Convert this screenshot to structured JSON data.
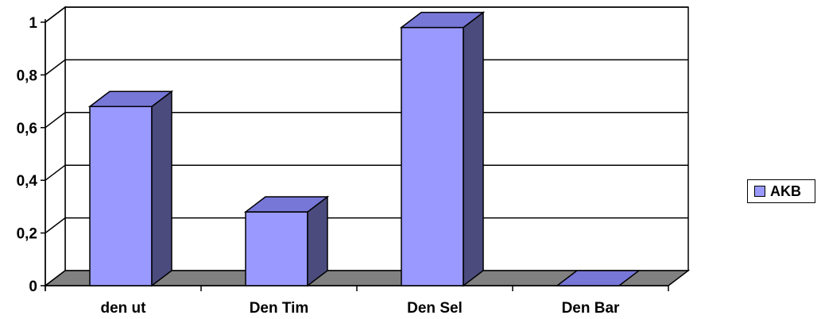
{
  "chart_data": {
    "type": "bar",
    "categories": [
      "den ut",
      "Den Tim",
      "Den Sel",
      "Den Bar"
    ],
    "series": [
      {
        "name": "AKB",
        "values": [
          0.68,
          0.28,
          0.98,
          0
        ]
      }
    ],
    "yticks": [
      "0",
      "0,2",
      "0,4",
      "0,6",
      "0,8",
      "1"
    ],
    "ylim": [
      0,
      1
    ],
    "grid": true,
    "legend_position": "right",
    "colors": {
      "bar_front": "#9999ff",
      "bar_side": "#4b4b7e",
      "bar_top": "#7777d8",
      "floor": "#808080"
    }
  },
  "legend": {
    "items": [
      {
        "label": "AKB",
        "color": "#9999ff"
      }
    ]
  }
}
